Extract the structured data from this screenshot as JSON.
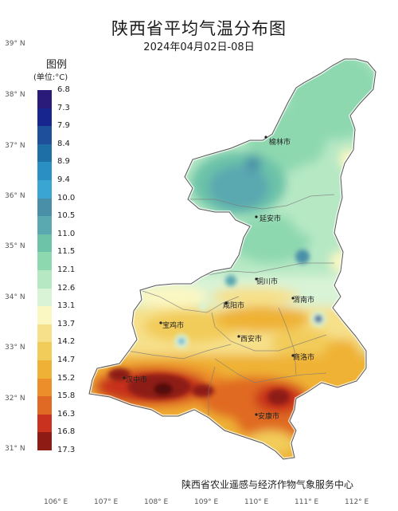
{
  "title": "陕西省平均气温分布图",
  "subtitle": "2024年04月02日-08日",
  "legend": {
    "title": "图例",
    "unit": "(单位:°C)",
    "entries": [
      {
        "label": "6.8",
        "color": "#2a1a7a"
      },
      {
        "label": "7.3",
        "color": "#16268e"
      },
      {
        "label": "7.9",
        "color": "#1d4f9a"
      },
      {
        "label": "8.4",
        "color": "#1f6fa7"
      },
      {
        "label": "8.9",
        "color": "#2a8fc2"
      },
      {
        "label": "9.4",
        "color": "#3aa5d2"
      },
      {
        "label": "10.0",
        "color": "#4a8fa8"
      },
      {
        "label": "10.5",
        "color": "#5aa8b0"
      },
      {
        "label": "11.0",
        "color": "#6cc3a8"
      },
      {
        "label": "11.5",
        "color": "#8ed8b0"
      },
      {
        "label": "12.1",
        "color": "#b6e8c4"
      },
      {
        "label": "12.6",
        "color": "#d8f3d6"
      },
      {
        "label": "13.1",
        "color": "#fbf7c2"
      },
      {
        "label": "13.7",
        "color": "#f6e08a"
      },
      {
        "label": "14.2",
        "color": "#f2cc5a"
      },
      {
        "label": "14.7",
        "color": "#efb236"
      },
      {
        "label": "15.2",
        "color": "#ec8f2a"
      },
      {
        "label": "15.8",
        "color": "#e06a24"
      },
      {
        "label": "16.3",
        "color": "#c8321e"
      },
      {
        "label": "16.8",
        "color": "#8e1c14"
      },
      {
        "label": "17.3",
        "color": "#520c0a"
      }
    ]
  },
  "lat_labels": [
    "39° N",
    "38° N",
    "37° N",
    "36° N",
    "35° N",
    "34° N",
    "33° N",
    "32° N",
    "31° N"
  ],
  "lon_labels": [
    "106° E",
    "107° E",
    "108° E",
    "109° E",
    "110° E",
    "111° E",
    "112° E"
  ],
  "cities": [
    "榆林市",
    "延安市",
    "铜川市",
    "咸阳市",
    "渭南市",
    "宝鸡市",
    "西安市",
    "商洛市",
    "汉中市",
    "安康市"
  ],
  "credit": "陕西省农业遥感与经济作物气象服务中心"
}
